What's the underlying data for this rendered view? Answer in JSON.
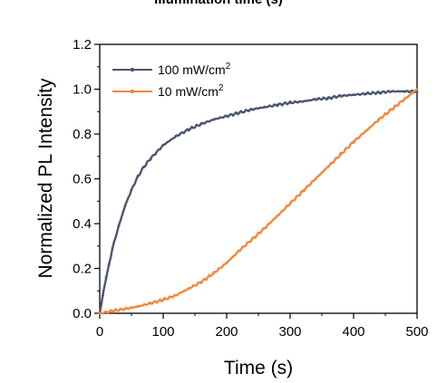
{
  "header": {
    "cropped_title": "Illumination time (s)"
  },
  "chart_data": {
    "type": "line",
    "xlabel": "Time (s)",
    "ylabel": "Normalized PL Intensity",
    "xlim": [
      0,
      500
    ],
    "ylim": [
      0,
      1.2
    ],
    "xticks": [
      "0",
      "100",
      "200",
      "300",
      "400",
      "500"
    ],
    "yticks": [
      "0.0",
      "0.2",
      "0.4",
      "0.6",
      "0.8",
      "1.0",
      "1.2"
    ],
    "legend_position": "top-left",
    "grid": false,
    "series": [
      {
        "name": "100 mW/cm",
        "name_superscript": "2",
        "color": "#4a5670",
        "marker": "circle",
        "x": [
          0,
          5,
          10,
          15,
          20,
          30,
          40,
          50,
          60,
          70,
          80,
          100,
          120,
          140,
          160,
          180,
          200,
          220,
          240,
          260,
          280,
          300,
          320,
          340,
          360,
          380,
          400,
          420,
          440,
          460,
          480,
          500
        ],
        "y": [
          0.0,
          0.08,
          0.16,
          0.22,
          0.29,
          0.39,
          0.48,
          0.55,
          0.61,
          0.655,
          0.69,
          0.75,
          0.79,
          0.82,
          0.845,
          0.865,
          0.88,
          0.895,
          0.91,
          0.92,
          0.93,
          0.94,
          0.945,
          0.955,
          0.96,
          0.97,
          0.975,
          0.98,
          0.985,
          0.99,
          0.99,
          0.99
        ]
      },
      {
        "name": "10 mW/cm",
        "name_superscript": "2",
        "color": "#f0883a",
        "marker": "circle",
        "x": [
          0,
          20,
          40,
          60,
          80,
          100,
          120,
          140,
          160,
          180,
          200,
          220,
          240,
          260,
          280,
          300,
          320,
          340,
          360,
          380,
          400,
          420,
          440,
          460,
          480,
          500
        ],
        "y": [
          0.0,
          0.01,
          0.02,
          0.03,
          0.045,
          0.06,
          0.08,
          0.11,
          0.14,
          0.18,
          0.225,
          0.28,
          0.33,
          0.38,
          0.435,
          0.49,
          0.545,
          0.6,
          0.655,
          0.71,
          0.765,
          0.815,
          0.865,
          0.91,
          0.955,
          1.0
        ]
      }
    ]
  }
}
